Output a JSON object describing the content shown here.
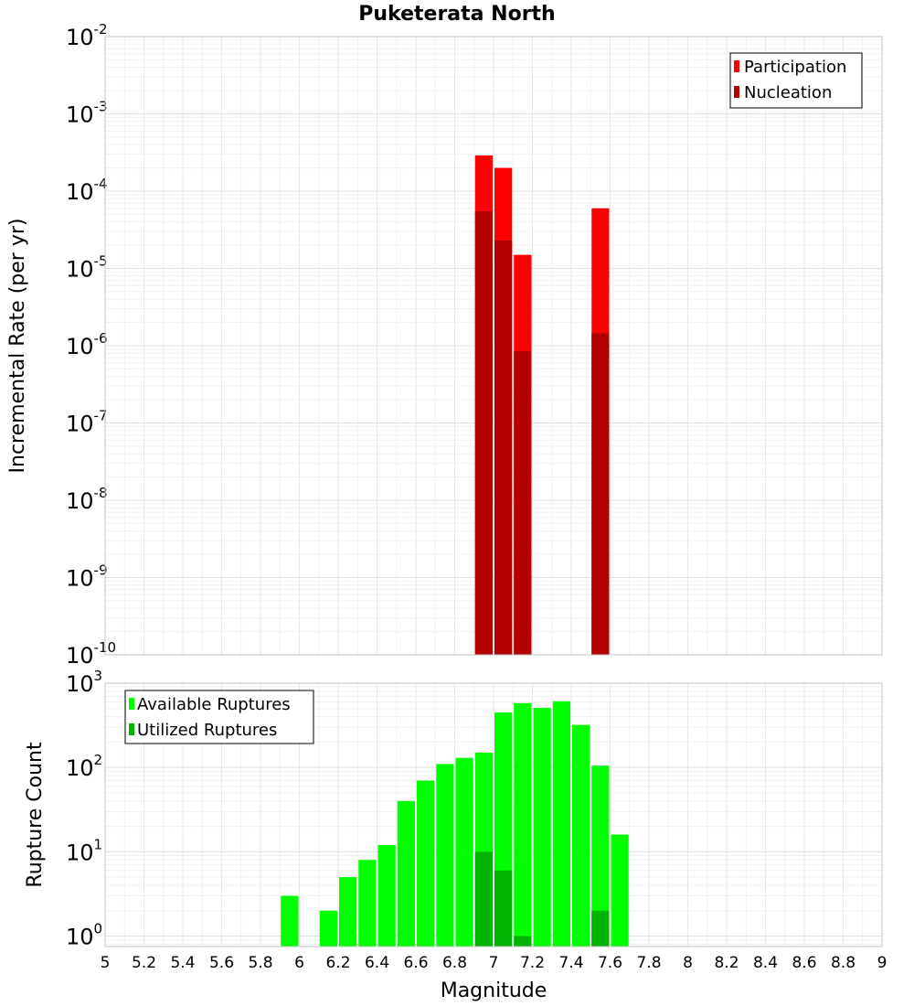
{
  "figure_title": "Puketerata North",
  "chart_data": [
    {
      "type": "bar",
      "xlabel": "",
      "ylabel": "Incremental Rate (per yr)",
      "yscale": "log",
      "ylim": [
        1e-10,
        0.01
      ],
      "xlim": [
        5,
        9
      ],
      "bar_width": 0.1,
      "grid": true,
      "legend_position": "top-right",
      "y_tick_labels": [
        {
          "base": "10",
          "exp": "-10"
        },
        {
          "base": "10",
          "exp": "-9"
        },
        {
          "base": "10",
          "exp": "-8"
        },
        {
          "base": "10",
          "exp": "-7"
        },
        {
          "base": "10",
          "exp": "-6"
        },
        {
          "base": "10",
          "exp": "-5"
        },
        {
          "base": "10",
          "exp": "-4"
        },
        {
          "base": "10",
          "exp": "-3"
        },
        {
          "base": "10",
          "exp": "-2"
        }
      ],
      "series": [
        {
          "name": "Participation",
          "color": "#ff0000",
          "x": [
            6.95,
            7.05,
            7.15,
            7.55
          ],
          "values": [
            0.00029,
            0.0002,
            1.5e-05,
            6e-05
          ]
        },
        {
          "name": "Nucleation",
          "color": "#b30000",
          "x": [
            6.95,
            7.05,
            7.15,
            7.55
          ],
          "values": [
            5.5e-05,
            2.3e-05,
            8.5e-07,
            1.45e-06
          ]
        }
      ]
    },
    {
      "type": "bar",
      "xlabel": "Magnitude",
      "ylabel": "Rupture Count",
      "yscale": "log",
      "ylim": [
        0.75,
        1000
      ],
      "xlim": [
        5,
        9
      ],
      "bar_width": 0.1,
      "grid": true,
      "legend_position": "top-left",
      "x_tick_labels": [
        "5",
        "5.2",
        "5.4",
        "5.6",
        "5.8",
        "6",
        "6.2",
        "6.4",
        "6.6",
        "6.8",
        "7",
        "7.2",
        "7.4",
        "7.6",
        "7.8",
        "8",
        "8.2",
        "8.4",
        "8.6",
        "8.8",
        "9"
      ],
      "y_tick_labels": [
        {
          "base": "10",
          "exp": "0"
        },
        {
          "base": "10",
          "exp": "1"
        },
        {
          "base": "10",
          "exp": "2"
        },
        {
          "base": "10",
          "exp": "3"
        }
      ],
      "series": [
        {
          "name": "Available Ruptures",
          "color": "#00ff00",
          "x": [
            5.95,
            6.15,
            6.25,
            6.35,
            6.45,
            6.55,
            6.65,
            6.75,
            6.85,
            6.95,
            7.05,
            7.15,
            7.25,
            7.35,
            7.45,
            7.55,
            7.65
          ],
          "values": [
            3,
            2,
            5,
            8,
            12,
            40,
            70,
            110,
            130,
            150,
            450,
            580,
            510,
            610,
            320,
            105,
            16
          ]
        },
        {
          "name": "Utilized Ruptures",
          "color": "#00b300",
          "x": [
            6.95,
            7.05,
            7.15,
            7.55
          ],
          "values": [
            10,
            6,
            1,
            2
          ]
        }
      ]
    }
  ]
}
